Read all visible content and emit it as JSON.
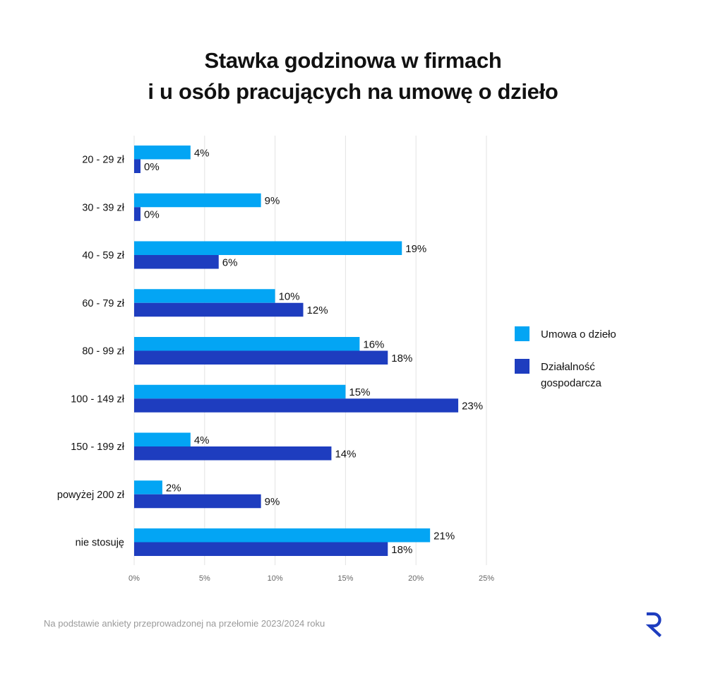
{
  "title_line1": "Stawka godzinowa w firmach",
  "title_line2": "i u osób pracujących na umowę o dzieło",
  "colors": {
    "umowa": "#03a5f4",
    "dzialalnosc": "#1e3dbf",
    "grid": "#e3e3e3",
    "logo": "#1e3dbf"
  },
  "legend": [
    {
      "label": "Umowa o dzieło",
      "color": "#03a5f4"
    },
    {
      "label": "Działalność gospodarcza",
      "color": "#1e3dbf"
    }
  ],
  "footnote": "Na podstawie ankiety przeprowadzonej na przełomie 2023/2024 roku",
  "logo_icon": "r-brand-logo-icon",
  "chart_data": {
    "type": "bar",
    "orientation": "horizontal",
    "categories": [
      "20 - 29 zł",
      "30 - 39 zł",
      "40 - 59 zł",
      "60 - 79 zł",
      "80 - 99 zł",
      "100 - 149 zł",
      "150 - 199 zł",
      "powyżej 200 zł",
      "nie stosuję"
    ],
    "series": [
      {
        "name": "Umowa o dzieło",
        "values": [
          4,
          9,
          19,
          10,
          16,
          15,
          4,
          2,
          21
        ]
      },
      {
        "name": "Działalność gospodarcza",
        "values": [
          0,
          0,
          6,
          12,
          18,
          23,
          14,
          9,
          18
        ]
      }
    ],
    "xlim": [
      0,
      25
    ],
    "xticks": [
      "0%",
      "5%",
      "10%",
      "15%",
      "20%",
      "25%"
    ],
    "grid": true,
    "legend_position": "right"
  }
}
